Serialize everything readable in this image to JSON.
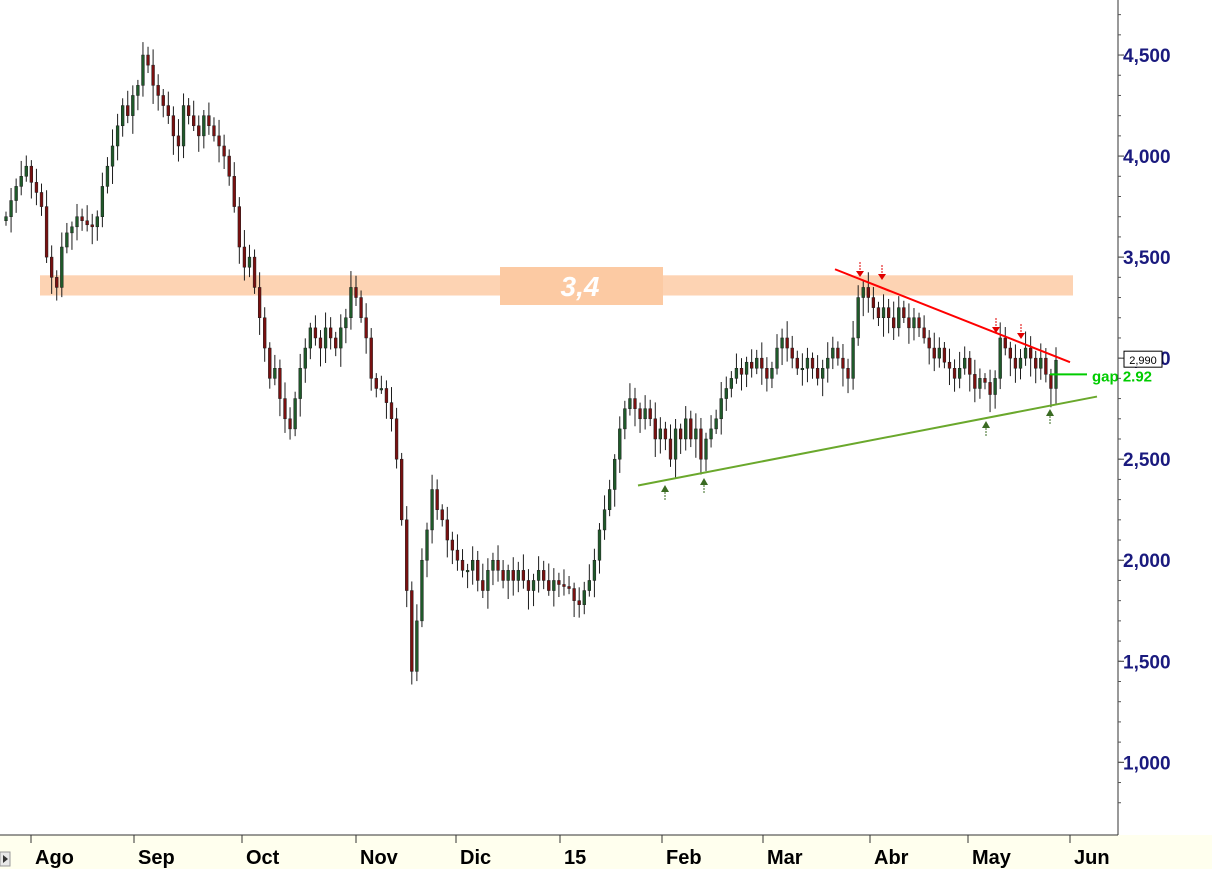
{
  "chart_data": {
    "type": "candlestick",
    "title": "",
    "xlabel": "",
    "ylabel": "",
    "ylim": [
      600,
      4800
    ],
    "y_ticks": [
      "1,000",
      "1,500",
      "2,000",
      "2,500",
      "3,000",
      "3,500",
      "4,000",
      "4,500"
    ],
    "x_ticks": [
      "Ago",
      "Sep",
      "Oct",
      "Nov",
      "Dic",
      "15",
      "Feb",
      "Mar",
      "Abr",
      "May",
      "Jun"
    ],
    "last_price_label": "2,990",
    "resistance_zone": {
      "low": 3310,
      "high": 3410,
      "label": "3,4"
    },
    "gap": {
      "value": 2920,
      "label": "gap 2.92"
    },
    "trendlines": {
      "resistance": {
        "start": [
          "Mar 26",
          3440
        ],
        "end": [
          "May 22",
          2980
        ],
        "color": "#ff0000"
      },
      "support": {
        "start": [
          "Jan 22",
          2370
        ],
        "end": [
          "May 27",
          2810
        ],
        "color": "#6aa82c"
      }
    },
    "down_arrows": [
      "Mar 26",
      "Mar 31",
      "May 6",
      "May 12"
    ],
    "up_arrows": [
      "Feb 1",
      "Feb 9",
      "May 4",
      "May 18"
    ],
    "closes": [
      3700,
      3780,
      3850,
      3900,
      3950,
      3870,
      3820,
      3750,
      3500,
      3400,
      3350,
      3550,
      3620,
      3650,
      3700,
      3680,
      3660,
      3650,
      3700,
      3850,
      3950,
      4050,
      4150,
      4250,
      4200,
      4300,
      4350,
      4500,
      4450,
      4350,
      4300,
      4250,
      4200,
      4100,
      4050,
      4250,
      4200,
      4150,
      4100,
      4200,
      4150,
      4100,
      4050,
      4000,
      3900,
      3750,
      3550,
      3450,
      3500,
      3350,
      3200,
      3050,
      2900,
      2950,
      2800,
      2700,
      2650,
      2800,
      2950,
      3050,
      3150,
      3100,
      3050,
      3150,
      3100,
      3050,
      3150,
      3200,
      3350,
      3300,
      3200,
      3100,
      2900,
      2850,
      2850,
      2780,
      2700,
      2500,
      2200,
      1850,
      1450,
      1700,
      2000,
      2150,
      2350,
      2250,
      2200,
      2100,
      2050,
      2000,
      1950,
      1950,
      2000,
      1900,
      1850,
      1950,
      2000,
      1950,
      1900,
      1950,
      1900,
      1950,
      1900,
      1850,
      1900,
      1950,
      1900,
      1850,
      1900,
      1880,
      1870,
      1860,
      1800,
      1780,
      1850,
      1900,
      2000,
      2150,
      2250,
      2350,
      2500,
      2650,
      2750,
      2800,
      2750,
      2700,
      2750,
      2700,
      2600,
      2650,
      2600,
      2500,
      2650,
      2600,
      2700,
      2600,
      2650,
      2500,
      2600,
      2650,
      2700,
      2800,
      2850,
      2900,
      2950,
      2920,
      2980,
      2950,
      3000,
      2950,
      2900,
      2950,
      3050,
      3100,
      3050,
      3000,
      2950,
      2950,
      3000,
      2950,
      2900,
      2950,
      3000,
      3050,
      3000,
      2950,
      2900,
      3100,
      3300,
      3350,
      3300,
      3250,
      3200,
      3250,
      3200,
      3150,
      3250,
      3200,
      3150,
      3200,
      3150,
      3100,
      3050,
      3000,
      3050,
      2980,
      2950,
      2900,
      2950,
      3000,
      2920,
      2850,
      2900,
      2880,
      2820,
      2900,
      3100,
      3050,
      3000,
      2950,
      3000,
      3050,
      3000,
      2950,
      3000,
      2920,
      2850,
      2990
    ]
  }
}
